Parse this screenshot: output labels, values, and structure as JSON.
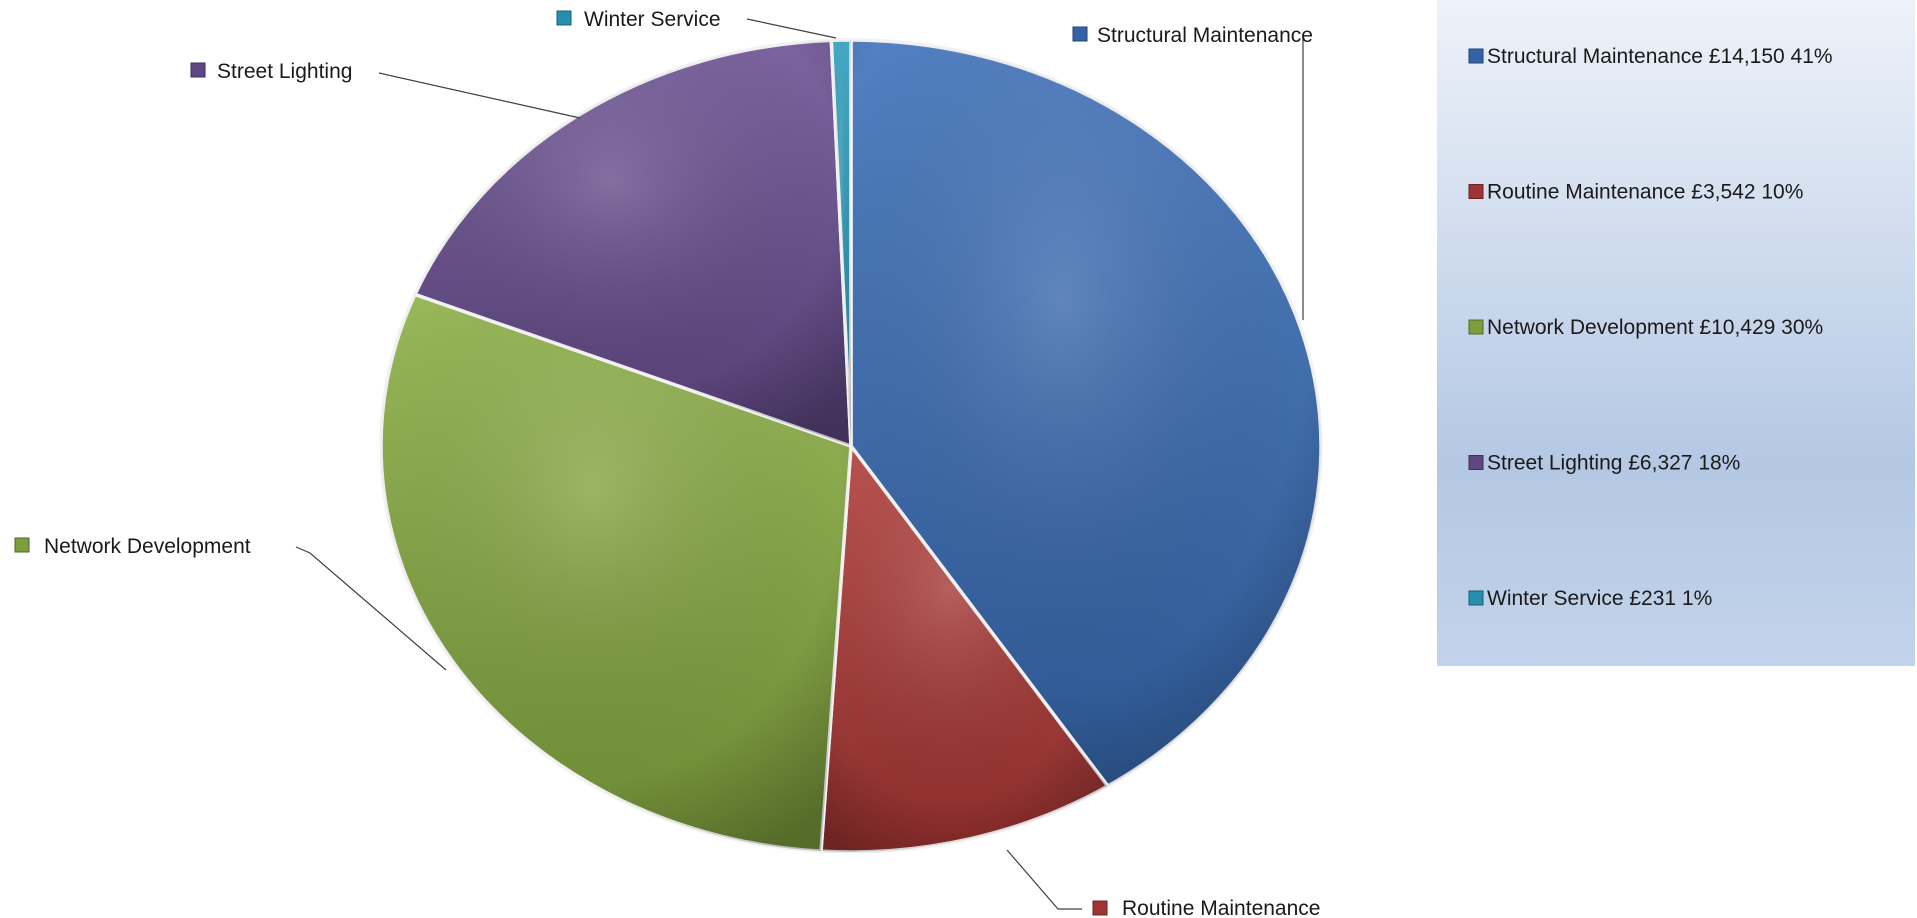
{
  "chart_data": {
    "type": "pie",
    "title": "",
    "currency": "£",
    "slices": [
      {
        "label": "Structural Maintenance",
        "value": 14150,
        "value_text": "£14,150",
        "percent_text": "41%",
        "color": "#3a6fba"
      },
      {
        "label": "Routine Maintenance",
        "value": 3542,
        "value_text": "£3,542",
        "percent_text": "10%",
        "color": "#b23a37"
      },
      {
        "label": "Network Development",
        "value": 10429,
        "value_text": "£10,429",
        "percent_text": "30%",
        "color": "#8bb043"
      },
      {
        "label": "Street Lighting",
        "value": 6327,
        "value_text": "£6,327",
        "percent_text": "18%",
        "color": "#6a4f93"
      },
      {
        "label": "Winter Service",
        "value": 231,
        "value_text": "£231",
        "percent_text": "1%",
        "color": "#2a9fc0"
      }
    ],
    "legend": {
      "placement": "right",
      "entries": [
        "Structural Maintenance £14,150 41%",
        "Routine Maintenance £3,542 10%",
        "Network Development £10,429 30%",
        "Street Lighting £6,327 18%",
        "Winter Service £231 1%"
      ]
    }
  }
}
